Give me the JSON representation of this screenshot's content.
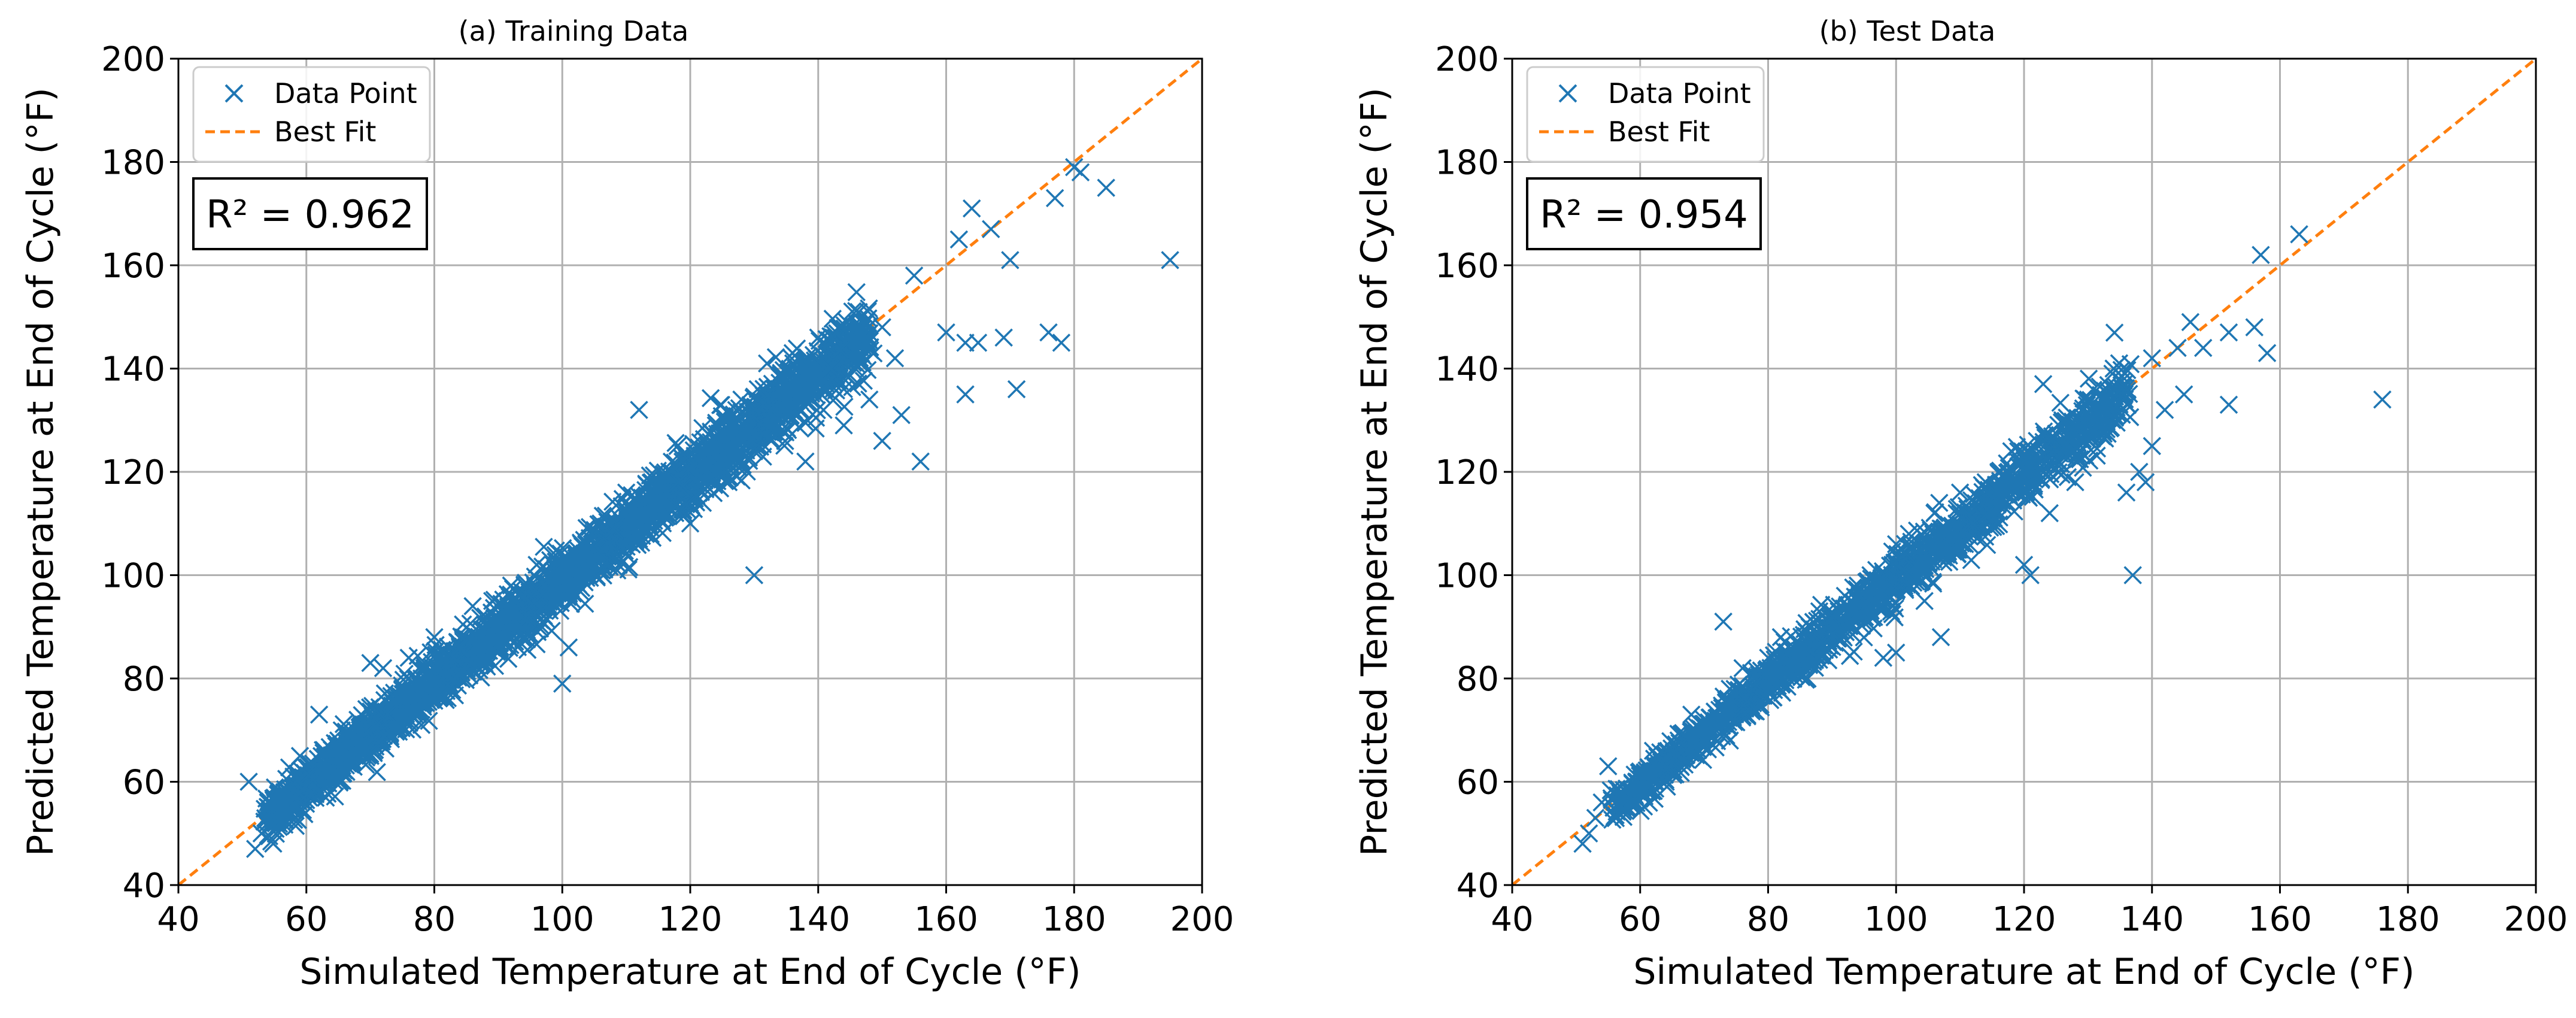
{
  "chart_data": [
    {
      "type": "scatter",
      "title": "(a) Training Data",
      "xlabel": "Simulated Temperature at End of Cycle (°F)",
      "ylabel": "Predicted Temperature at End of Cycle (°F)",
      "xlim": [
        40,
        200
      ],
      "ylim": [
        40,
        200
      ],
      "xticks": [
        "40",
        "60",
        "80",
        "100",
        "120",
        "140",
        "160",
        "180",
        "200"
      ],
      "yticks": [
        "40",
        "60",
        "80",
        "100",
        "120",
        "140",
        "160",
        "180",
        "200"
      ],
      "grid": true,
      "legend": {
        "position": "top-left",
        "entries": [
          "Data Point",
          "Best Fit"
        ]
      },
      "annotation": {
        "label": "R² = 0.962",
        "r2": 0.962
      },
      "best_fit": {
        "x": [
          40,
          200
        ],
        "y": [
          40,
          200
        ],
        "color": "#ff7f0e"
      },
      "marker_color": "#1f77b4",
      "series": [
        {
          "name": "Data Point",
          "points": [
            [
              51,
              60
            ],
            [
              52,
              47
            ],
            [
              53,
              50
            ],
            [
              54,
              56
            ],
            [
              57,
              57
            ],
            [
              58,
              61
            ],
            [
              59,
              65
            ],
            [
              62,
              73
            ],
            [
              63,
              62
            ],
            [
              65,
              68
            ],
            [
              68,
              72
            ],
            [
              70,
              83
            ],
            [
              72,
              82
            ],
            [
              75,
              78
            ],
            [
              76,
              84
            ],
            [
              78,
              80
            ],
            [
              80,
              88
            ],
            [
              82,
              82
            ],
            [
              84,
              86
            ],
            [
              86,
              94
            ],
            [
              88,
              92
            ],
            [
              90,
              89
            ],
            [
              92,
              98
            ],
            [
              94,
              96
            ],
            [
              96,
              102
            ],
            [
              98,
              97
            ],
            [
              100,
              79
            ],
            [
              101,
              86
            ],
            [
              102,
              104
            ],
            [
              104,
              100
            ],
            [
              106,
              110
            ],
            [
              108,
              109
            ],
            [
              110,
              116
            ],
            [
              112,
              132
            ],
            [
              112,
              107
            ],
            [
              114,
              118
            ],
            [
              116,
              114
            ],
            [
              118,
              125
            ],
            [
              120,
              110
            ],
            [
              122,
              124
            ],
            [
              124,
              129
            ],
            [
              126,
              118
            ],
            [
              128,
              134
            ],
            [
              130,
              100
            ],
            [
              130,
              124
            ],
            [
              132,
              141
            ],
            [
              134,
              131
            ],
            [
              136,
              143
            ],
            [
              138,
              122
            ],
            [
              140,
              146
            ],
            [
              142,
              140
            ],
            [
              144,
              129
            ],
            [
              146,
              148
            ],
            [
              148,
              134
            ],
            [
              150,
              148
            ],
            [
              150,
              126
            ],
            [
              152,
              142
            ],
            [
              153,
              131
            ],
            [
              155,
              158
            ],
            [
              156,
              122
            ],
            [
              160,
              147
            ],
            [
              162,
              165
            ],
            [
              163,
              145
            ],
            [
              163,
              135
            ],
            [
              164,
              171
            ],
            [
              165,
              145
            ],
            [
              167,
              167
            ],
            [
              169,
              146
            ],
            [
              170,
              161
            ],
            [
              171,
              136
            ],
            [
              176,
              147
            ],
            [
              177,
              173
            ],
            [
              178,
              145
            ],
            [
              180,
              179
            ],
            [
              181,
              178
            ],
            [
              185,
              175
            ],
            [
              195,
              161
            ]
          ],
          "dense_band": {
            "x_range": [
              54,
              148
            ],
            "y_spread": 5
          }
        }
      ]
    },
    {
      "type": "scatter",
      "title": "(b) Test Data",
      "xlabel": "Simulated Temperature at End of Cycle (°F)",
      "ylabel": "Predicted Temperature at End of Cycle (°F)",
      "xlim": [
        40,
        200
      ],
      "ylim": [
        40,
        200
      ],
      "xticks": [
        "40",
        "60",
        "80",
        "100",
        "120",
        "140",
        "160",
        "180",
        "200"
      ],
      "yticks": [
        "40",
        "60",
        "80",
        "100",
        "120",
        "140",
        "160",
        "180",
        "200"
      ],
      "grid": true,
      "legend": {
        "position": "top-left",
        "entries": [
          "Data Point",
          "Best Fit"
        ]
      },
      "annotation": {
        "label": "R² = 0.954",
        "r2": 0.954
      },
      "best_fit": {
        "x": [
          40,
          200
        ],
        "y": [
          40,
          200
        ],
        "color": "#ff7f0e"
      },
      "marker_color": "#1f77b4",
      "series": [
        {
          "name": "Data Point",
          "points": [
            [
              51,
              48
            ],
            [
              52,
              50
            ],
            [
              53,
              53
            ],
            [
              54,
              56
            ],
            [
              55,
              63
            ],
            [
              57,
              58
            ],
            [
              60,
              62
            ],
            [
              62,
              66
            ],
            [
              64,
              60
            ],
            [
              66,
              68
            ],
            [
              68,
              73
            ],
            [
              70,
              72
            ],
            [
              73,
              91
            ],
            [
              74,
              78
            ],
            [
              76,
              82
            ],
            [
              78,
              79
            ],
            [
              80,
              84
            ],
            [
              82,
              88
            ],
            [
              84,
              86
            ],
            [
              86,
              89
            ],
            [
              88,
              93
            ],
            [
              90,
              92
            ],
            [
              92,
              96
            ],
            [
              94,
              98
            ],
            [
              96,
              100
            ],
            [
              98,
              84
            ],
            [
              100,
              85
            ],
            [
              100,
              106
            ],
            [
              102,
              108
            ],
            [
              104,
              101
            ],
            [
              106,
              112
            ],
            [
              107,
              88
            ],
            [
              110,
              116
            ],
            [
              112,
              110
            ],
            [
              114,
              118
            ],
            [
              116,
              120
            ],
            [
              118,
              124
            ],
            [
              120,
              102
            ],
            [
              121,
              100
            ],
            [
              122,
              126
            ],
            [
              123,
              137
            ],
            [
              124,
              112
            ],
            [
              126,
              130
            ],
            [
              128,
              118
            ],
            [
              130,
              134
            ],
            [
              132,
              128
            ],
            [
              134,
              140
            ],
            [
              136,
              116
            ],
            [
              137,
              100
            ],
            [
              138,
              120
            ],
            [
              139,
              118
            ],
            [
              140,
              142
            ],
            [
              140,
              125
            ],
            [
              142,
              132
            ],
            [
              144,
              144
            ],
            [
              145,
              135
            ],
            [
              146,
              149
            ],
            [
              148,
              144
            ],
            [
              152,
              133
            ],
            [
              152,
              147
            ],
            [
              156,
              148
            ],
            [
              157,
              162
            ],
            [
              158,
              143
            ],
            [
              163,
              166
            ],
            [
              176,
              134
            ]
          ],
          "dense_band": {
            "x_range": [
              56,
              136
            ],
            "y_spread": 4.5
          }
        }
      ]
    }
  ]
}
